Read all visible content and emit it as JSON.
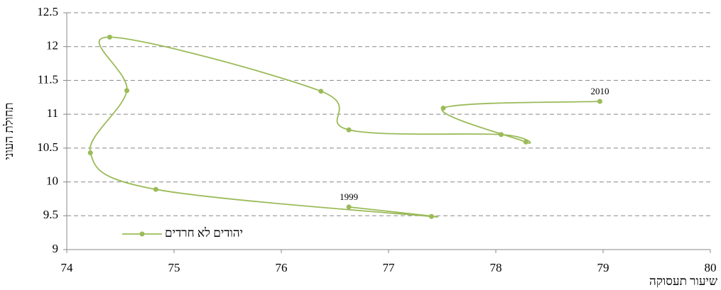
{
  "chart_data": {
    "type": "scatter",
    "line": "smooth",
    "x_label": "שיעור תעסוקה",
    "y_label": "תחולת העוני",
    "series": [
      {
        "name": "יהודים לא חרדים",
        "color": "#9bbb59",
        "x": [
          76.63,
          77.4,
          74.83,
          74.22,
          74.56,
          74.4,
          76.37,
          76.63,
          78.05,
          78.28,
          77.51,
          78.97
        ],
        "y": [
          9.63,
          9.49,
          9.89,
          10.43,
          11.35,
          12.14,
          11.34,
          10.77,
          10.7,
          10.59,
          11.09,
          11.19
        ],
        "point_labels": [
          "1999",
          null,
          null,
          null,
          null,
          null,
          null,
          null,
          null,
          null,
          null,
          "2010"
        ]
      }
    ],
    "xlim": [
      74,
      80
    ],
    "xticks": [
      74,
      75,
      76,
      77,
      78,
      79,
      80
    ],
    "ylim": [
      9,
      12.5
    ],
    "yticks": [
      9,
      9.5,
      10,
      10.5,
      11,
      11.5,
      12,
      12.5
    ],
    "grid": true,
    "legend": "lower left"
  }
}
